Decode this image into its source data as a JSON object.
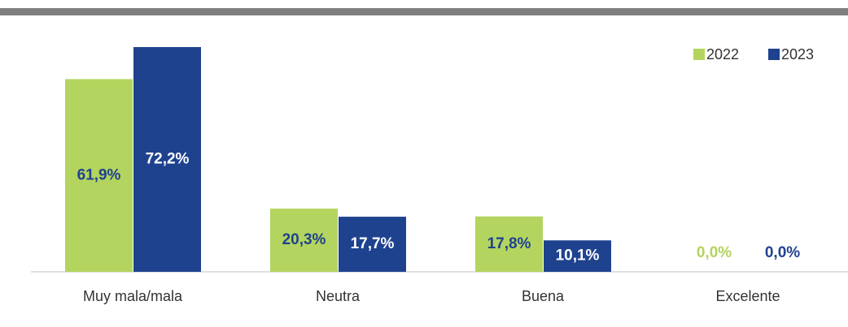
{
  "chart_data": {
    "type": "bar",
    "categories": [
      "Muy mala/mala",
      "Neutra",
      "Buena",
      "Excelente"
    ],
    "series": [
      {
        "name": "2022",
        "color": "#b3d45e",
        "values": [
          61.9,
          20.3,
          17.8,
          0.0
        ],
        "value_labels": [
          "61,9%",
          "20,3%",
          "17,8%",
          "0,0%"
        ]
      },
      {
        "name": "2023",
        "color": "#1f428f",
        "values": [
          72.2,
          17.7,
          10.1,
          0.0
        ],
        "value_labels": [
          "72,2%",
          "17,7%",
          "10,1%",
          "0,0%"
        ]
      }
    ],
    "legend": "top-right"
  }
}
